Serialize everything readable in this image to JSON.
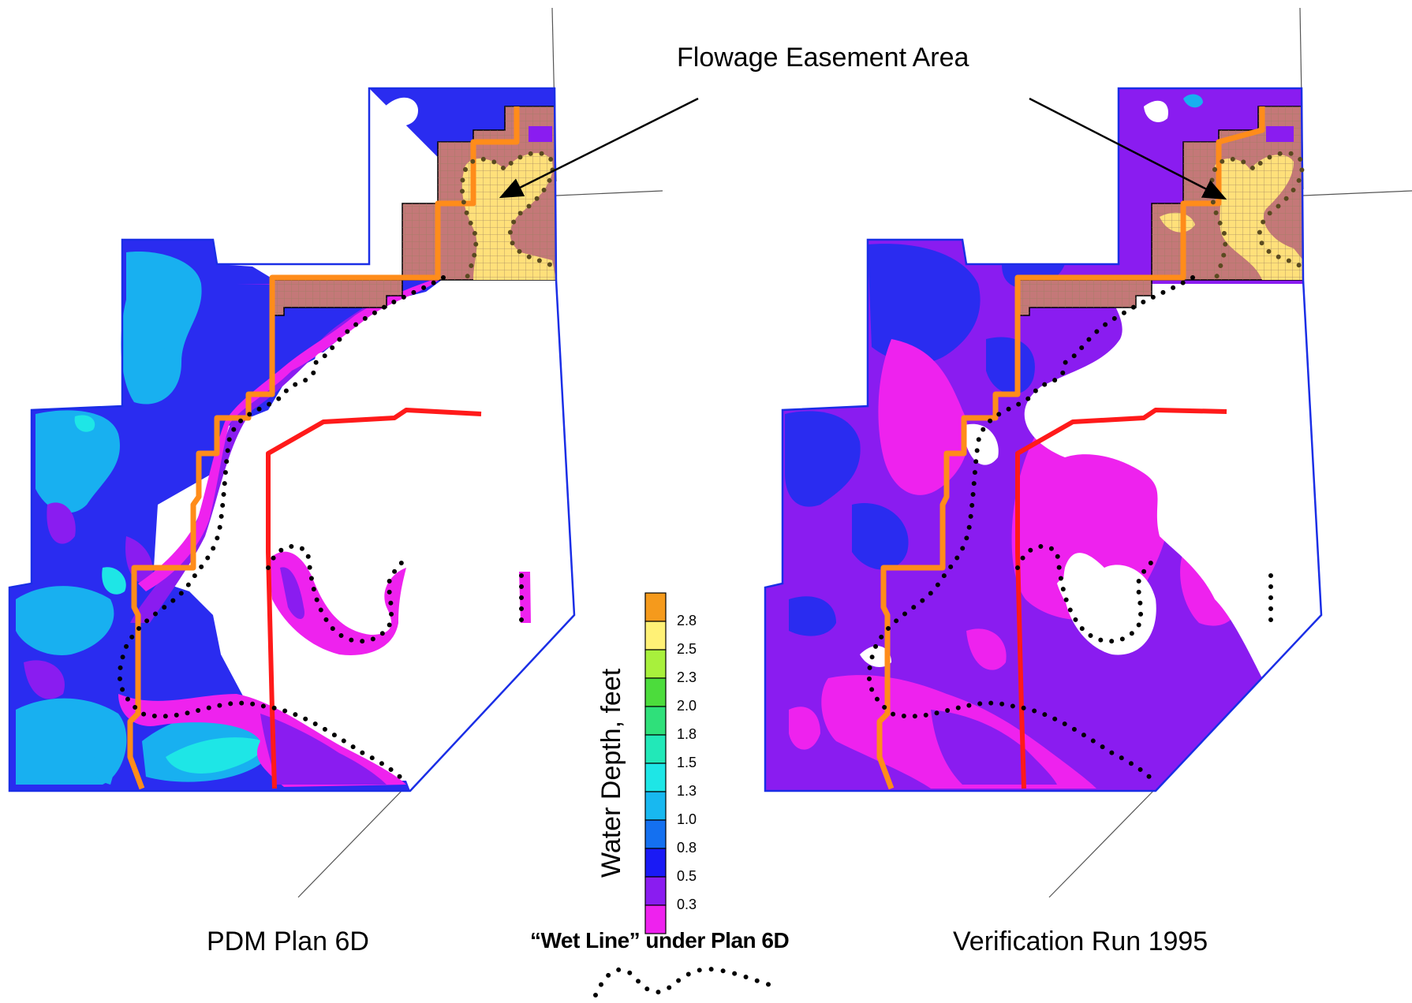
{
  "callout": {
    "text": "Flowage Easement Area"
  },
  "maps": {
    "left": {
      "caption": "PDM Plan 6D"
    },
    "right": {
      "caption": "Verification Run 1995"
    }
  },
  "legend": {
    "title": "Water Depth, feet",
    "bins": [
      {
        "label": "2.8",
        "color": "#f59a1c"
      },
      {
        "label": "2.5",
        "color": "#fff176"
      },
      {
        "label": "2.3",
        "color": "#a8f03c"
      },
      {
        "label": "2.0",
        "color": "#4cdc3c"
      },
      {
        "label": "1.8",
        "color": "#2fe07a"
      },
      {
        "label": "1.5",
        "color": "#22e8b8"
      },
      {
        "label": "1.3",
        "color": "#1ee6e6"
      },
      {
        "label": "1.0",
        "color": "#18b8f0"
      },
      {
        "label": "0.8",
        "color": "#1470f0"
      },
      {
        "label": "0.5",
        "color": "#1a1af5"
      },
      {
        "label": "0.3",
        "color": "#8a1cf0"
      },
      {
        "label": "",
        "color": "#ee22ee"
      }
    ]
  },
  "wet_line": {
    "label": "“Wet Line” under Plan 6D"
  },
  "colors": {
    "orange_route": "#ff8c1a",
    "red_route": "#ff1a1a",
    "boundary": "#1a2ee6",
    "easement_fill": "#b87878"
  }
}
